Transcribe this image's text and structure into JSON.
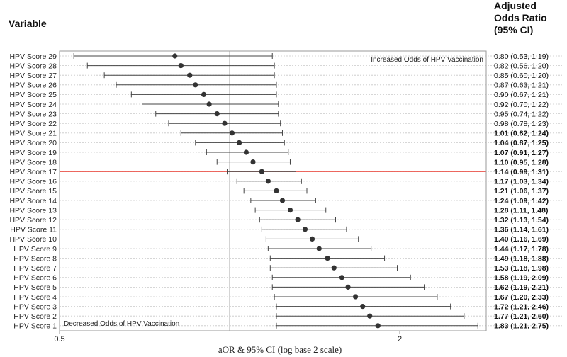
{
  "header": {
    "variable": "Variable",
    "aor": "Adjusted\nOdds Ratio\n(95% CI)"
  },
  "chart_data": {
    "type": "forest",
    "xlabel": "aOR & 95% CI (log base 2 scale)",
    "x_scale": "log2",
    "xlim": [
      0.5,
      3.0
    ],
    "xticks": [
      0.5,
      2
    ],
    "xtick_labels": [
      "0.5",
      "2"
    ],
    "reference_line": 1,
    "grid": "dotted horizontal per row",
    "annotations": {
      "top_right": "Increased Odds of HPV Vaccination",
      "bottom_left": "Decreased Odds of HPV Vaccination"
    },
    "highlight_label": "HPV Score 17",
    "highlight_color": "#e8372c",
    "point_color": "#333333",
    "rows": [
      {
        "label": "HPV Score 29",
        "or": 0.8,
        "lo": 0.53,
        "hi": 1.19,
        "text": "0.80 (0.53, 1.19)",
        "bold": false
      },
      {
        "label": "HPV Score 28",
        "or": 0.82,
        "lo": 0.56,
        "hi": 1.2,
        "text": "0.82 (0.56, 1.20)",
        "bold": false
      },
      {
        "label": "HPV Score 27",
        "or": 0.85,
        "lo": 0.6,
        "hi": 1.2,
        "text": "0.85 (0.60, 1.20)",
        "bold": false
      },
      {
        "label": "HPV Score 26",
        "or": 0.87,
        "lo": 0.63,
        "hi": 1.21,
        "text": "0.87 (0.63, 1.21)",
        "bold": false
      },
      {
        "label": "HPV Score 25",
        "or": 0.9,
        "lo": 0.67,
        "hi": 1.21,
        "text": "0.90 (0.67, 1.21)",
        "bold": false
      },
      {
        "label": "HPV Score 24",
        "or": 0.92,
        "lo": 0.7,
        "hi": 1.22,
        "text": "0.92 (0.70, 1.22)",
        "bold": false
      },
      {
        "label": "HPV Score 23",
        "or": 0.95,
        "lo": 0.74,
        "hi": 1.22,
        "text": "0.95 (0.74, 1.22)",
        "bold": false
      },
      {
        "label": "HPV Score 22",
        "or": 0.98,
        "lo": 0.78,
        "hi": 1.23,
        "text": "0.98 (0.78, 1.23)",
        "bold": false
      },
      {
        "label": "HPV Score 21",
        "or": 1.01,
        "lo": 0.82,
        "hi": 1.24,
        "text": "1.01 (0.82, 1.24)",
        "bold": true
      },
      {
        "label": "HPV Score 20",
        "or": 1.04,
        "lo": 0.87,
        "hi": 1.25,
        "text": "1.04 (0.87, 1.25)",
        "bold": true
      },
      {
        "label": "HPV Score 19",
        "or": 1.07,
        "lo": 0.91,
        "hi": 1.27,
        "text": "1.07 (0.91, 1.27)",
        "bold": true
      },
      {
        "label": "HPV Score 18",
        "or": 1.1,
        "lo": 0.95,
        "hi": 1.28,
        "text": "1.10 (0.95, 1.28)",
        "bold": true
      },
      {
        "label": "HPV Score 17",
        "or": 1.14,
        "lo": 0.99,
        "hi": 1.31,
        "text": "1.14 (0.99, 1.31)",
        "bold": true
      },
      {
        "label": "HPV Score 16",
        "or": 1.17,
        "lo": 1.03,
        "hi": 1.34,
        "text": "1.17 (1.03, 1.34)",
        "bold": true
      },
      {
        "label": "HPV Score 15",
        "or": 1.21,
        "lo": 1.06,
        "hi": 1.37,
        "text": "1.21 (1.06, 1.37)",
        "bold": true
      },
      {
        "label": "HPV Score 14",
        "or": 1.24,
        "lo": 1.09,
        "hi": 1.42,
        "text": "1.24 (1.09, 1.42)",
        "bold": true
      },
      {
        "label": "HPV Score 13",
        "or": 1.28,
        "lo": 1.11,
        "hi": 1.48,
        "text": "1.28 (1.11, 1.48)",
        "bold": true
      },
      {
        "label": "HPV Score 12",
        "or": 1.32,
        "lo": 1.13,
        "hi": 1.54,
        "text": "1.32 (1.13, 1.54)",
        "bold": true
      },
      {
        "label": "HPV Score 11",
        "or": 1.36,
        "lo": 1.14,
        "hi": 1.61,
        "text": "1.36 (1.14, 1.61)",
        "bold": true
      },
      {
        "label": "HPV Score 10",
        "or": 1.4,
        "lo": 1.16,
        "hi": 1.69,
        "text": "1.40 (1.16, 1.69)",
        "bold": true
      },
      {
        "label": "HPV Score 9",
        "or": 1.44,
        "lo": 1.17,
        "hi": 1.78,
        "text": "1.44 (1.17, 1.78)",
        "bold": true
      },
      {
        "label": "HPV Score 8",
        "or": 1.49,
        "lo": 1.18,
        "hi": 1.88,
        "text": "1.49 (1.18, 1.88)",
        "bold": true
      },
      {
        "label": "HPV Score 7",
        "or": 1.53,
        "lo": 1.18,
        "hi": 1.98,
        "text": "1.53 (1.18, 1.98)",
        "bold": true
      },
      {
        "label": "HPV Score 6",
        "or": 1.58,
        "lo": 1.19,
        "hi": 2.09,
        "text": "1.58 (1.19, 2.09)",
        "bold": true
      },
      {
        "label": "HPV Score 5",
        "or": 1.62,
        "lo": 1.19,
        "hi": 2.21,
        "text": "1.62 (1.19, 2.21)",
        "bold": true
      },
      {
        "label": "HPV Score 4",
        "or": 1.67,
        "lo": 1.2,
        "hi": 2.33,
        "text": "1.67 (1.20, 2.33)",
        "bold": true
      },
      {
        "label": "HPV Score 3",
        "or": 1.72,
        "lo": 1.21,
        "hi": 2.46,
        "text": "1.72 (1.21, 2.46)",
        "bold": true
      },
      {
        "label": "HPV Score 2",
        "or": 1.77,
        "lo": 1.21,
        "hi": 2.6,
        "text": "1.77 (1.21, 2.60)",
        "bold": true
      },
      {
        "label": "HPV Score 1",
        "or": 1.83,
        "lo": 1.21,
        "hi": 2.75,
        "text": "1.83 (1.21, 2.75)",
        "bold": true
      }
    ]
  }
}
